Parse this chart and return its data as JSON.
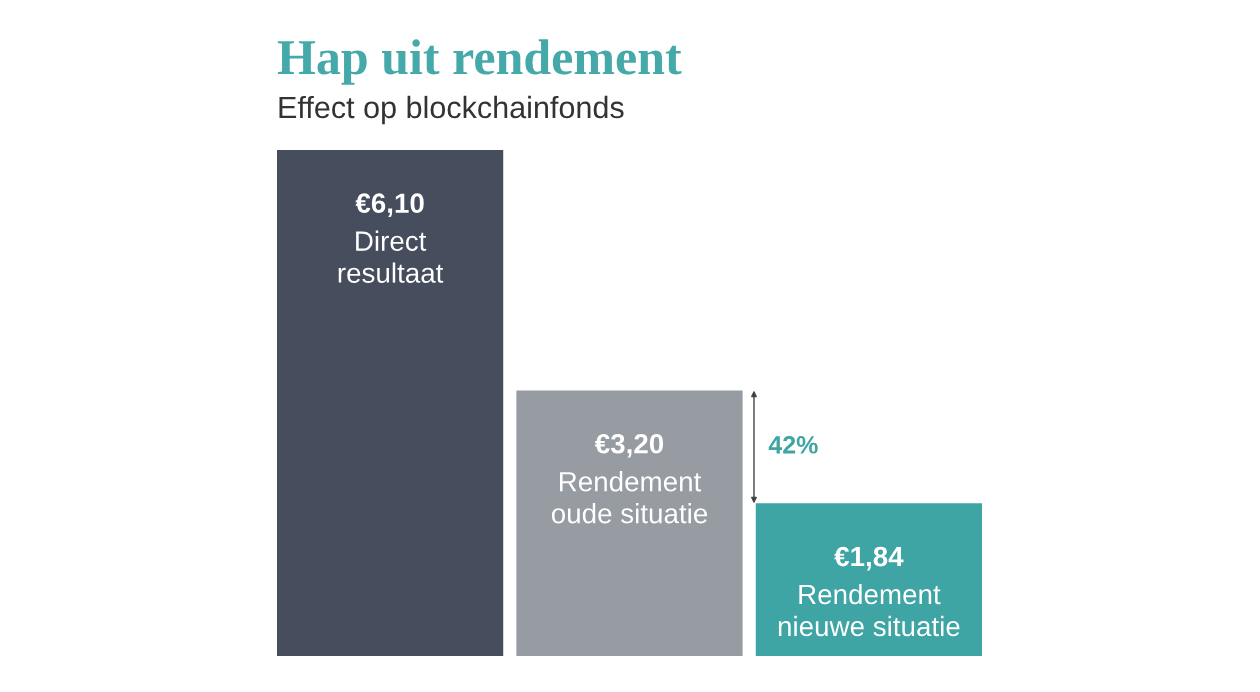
{
  "chart_data": {
    "type": "bar",
    "title": "Hap uit rendement",
    "subtitle": "Effect op blockchainfonds",
    "categories": [
      "Direct\nresultaat",
      "Rendement\noude situatie",
      "Rendement\nnieuwe situatie"
    ],
    "values": [
      6.1,
      3.2,
      1.84
    ],
    "colors": [
      "#464e5e",
      "#979ba2",
      "#3ea4a4"
    ],
    "value_labels": [
      "€6,10",
      "€3,20",
      "€1,84"
    ],
    "ylim": [
      0,
      6.1
    ],
    "tick_labels": false,
    "annotations": [
      "42%"
    ]
  }
}
